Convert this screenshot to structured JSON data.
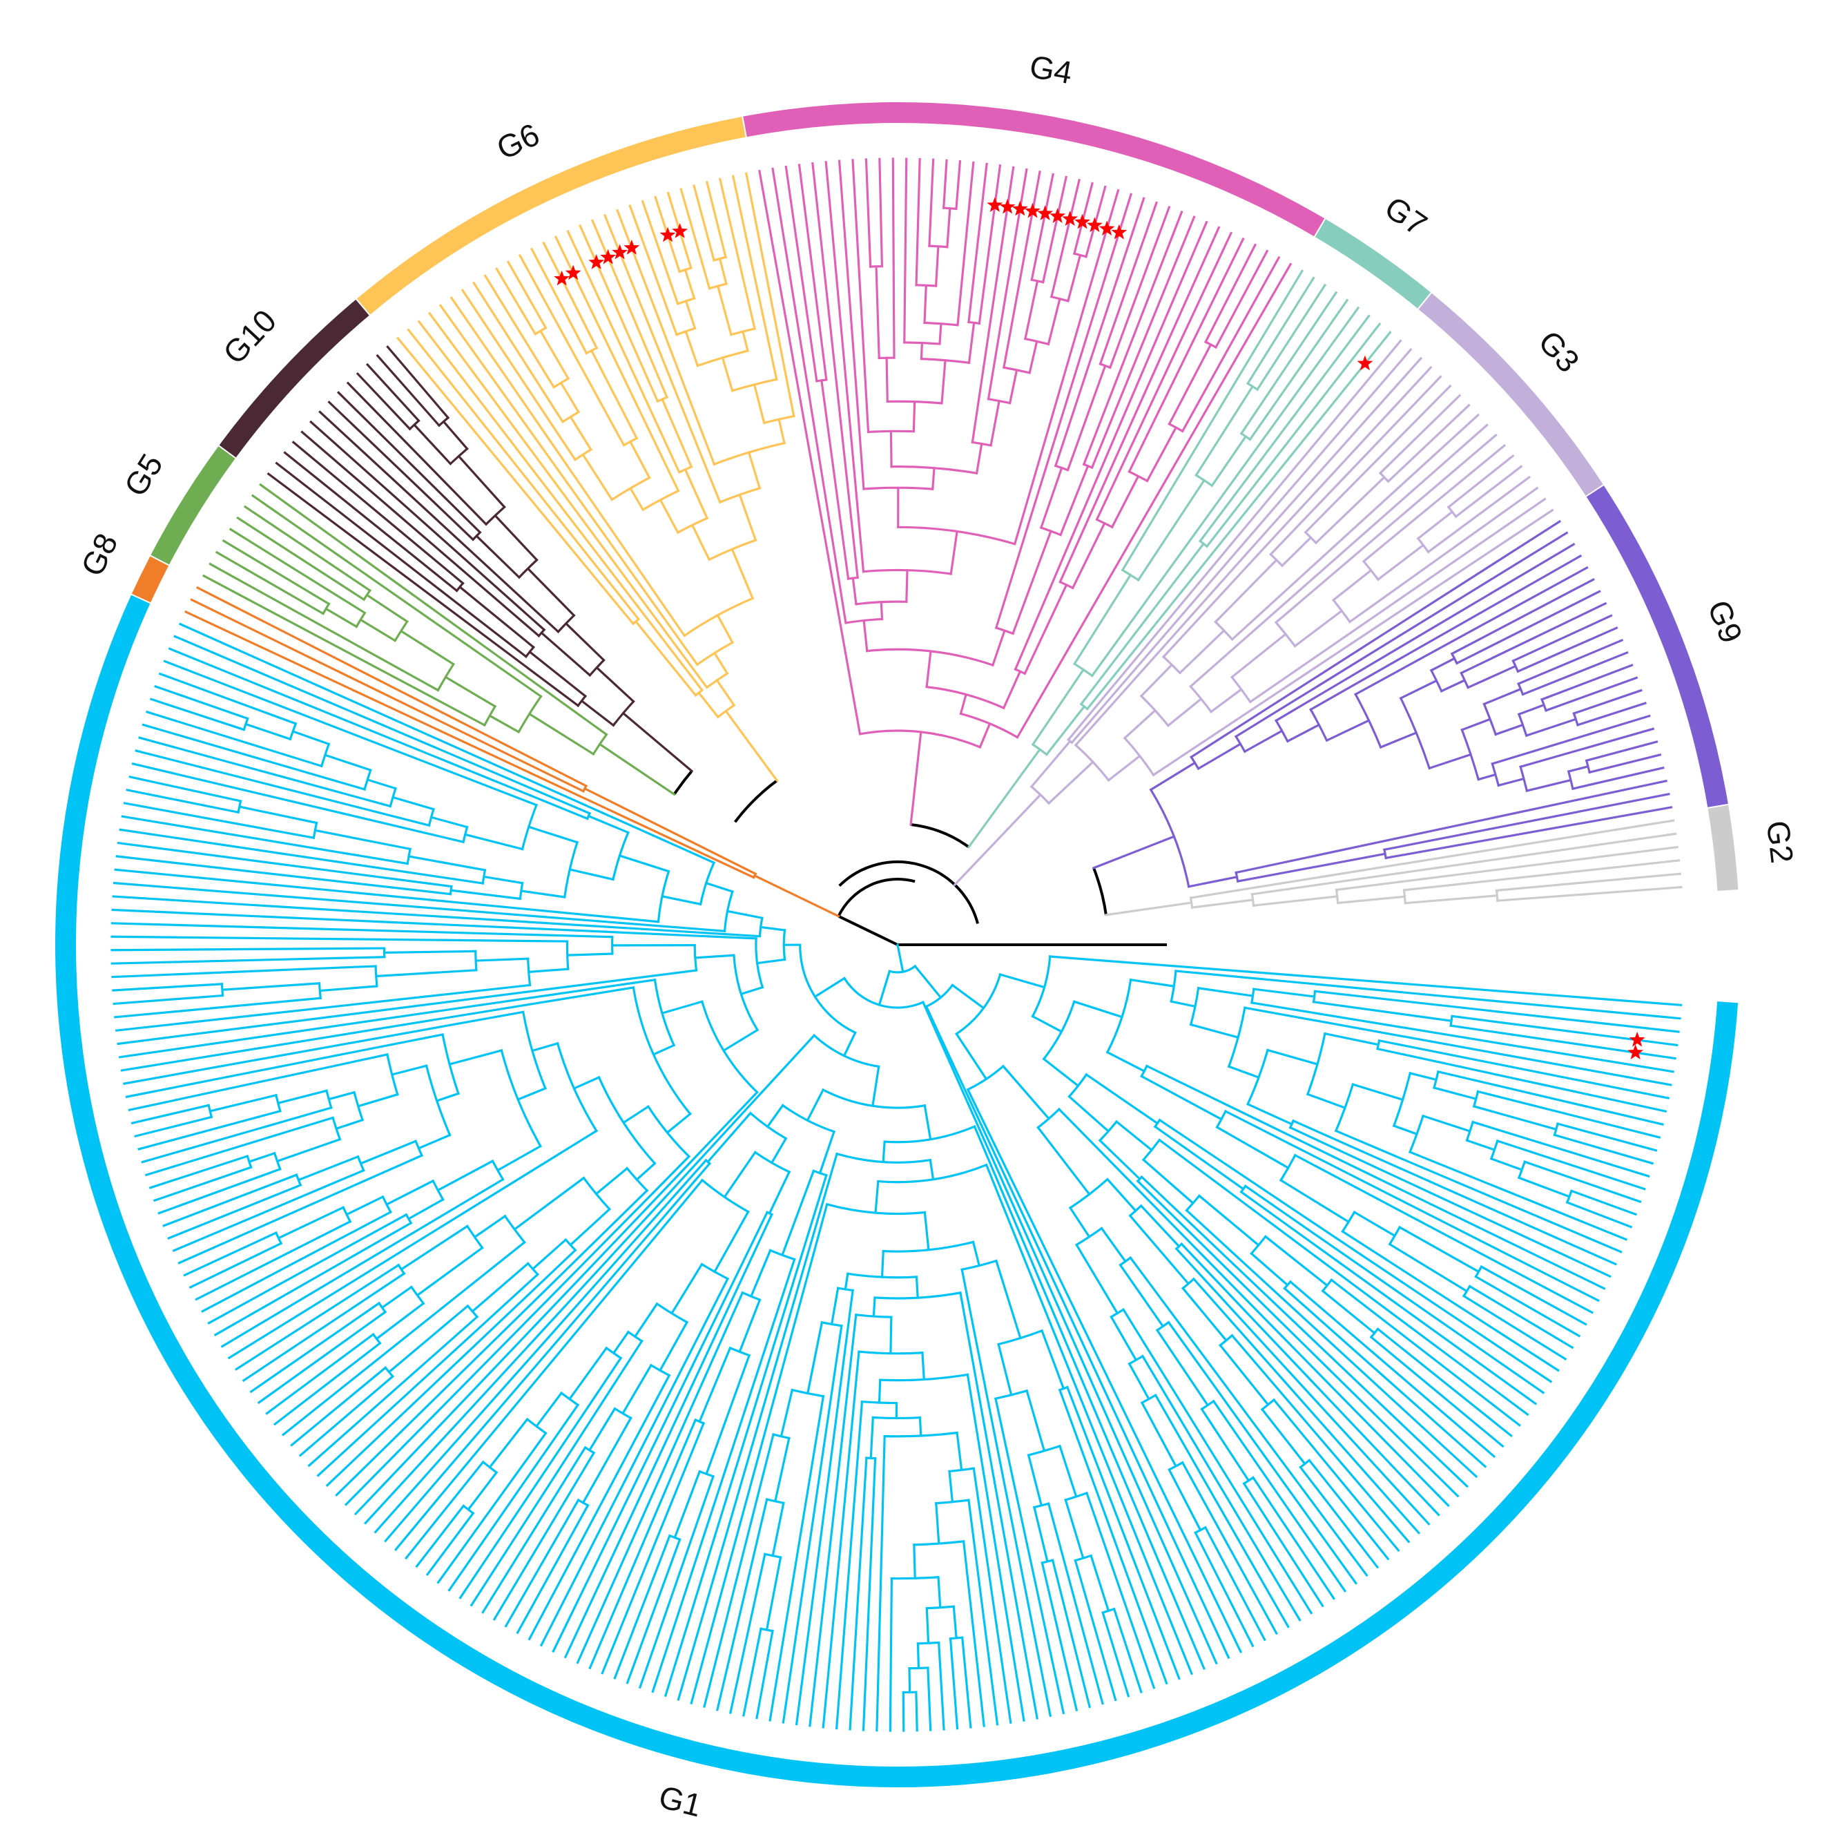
{
  "figure": {
    "type": "circular-phylogenetic-tree",
    "total_leaves": 370
  },
  "groups": [
    {
      "id": "G1",
      "label": "G1",
      "color": "#00c3f5",
      "leaves": 205,
      "marked_leaves": [
        3,
        4
      ]
    },
    {
      "id": "G8",
      "label": "G8",
      "color": "#f07d28",
      "leaves": 3,
      "marked_leaves": []
    },
    {
      "id": "G5",
      "label": "G5",
      "color": "#6fad52",
      "leaves": 9,
      "marked_leaves": []
    },
    {
      "id": "G10",
      "label": "G10",
      "color": "#4a2834",
      "leaves": 14,
      "marked_leaves": []
    },
    {
      "id": "G6",
      "label": "G6",
      "color": "#ffc456",
      "leaves": 30,
      "marked_leaves": [
        13,
        14,
        16,
        17,
        18,
        19,
        22,
        23
      ]
    },
    {
      "id": "G4",
      "label": "G4",
      "color": "#e060b8",
      "leaves": 42,
      "marked_leaves": [
        18,
        19,
        20,
        21,
        22,
        23,
        24,
        25,
        26,
        27,
        28
      ]
    },
    {
      "id": "G7",
      "label": "G7",
      "color": "#86cdbd",
      "leaves": 9,
      "marked_leaves": [
        8
      ]
    },
    {
      "id": "G3",
      "label": "G3",
      "color": "#c2afda",
      "leaves": 18,
      "marked_leaves": []
    },
    {
      "id": "G9",
      "label": "G9",
      "color": "#7d5ed2",
      "leaves": 24,
      "marked_leaves": []
    },
    {
      "id": "G2",
      "label": "G2",
      "color": "#cccccc",
      "leaves": 6,
      "marked_leaves": []
    }
  ],
  "backbone_color": "#000000",
  "marker": {
    "shape": "star",
    "color": "#ff0000"
  }
}
